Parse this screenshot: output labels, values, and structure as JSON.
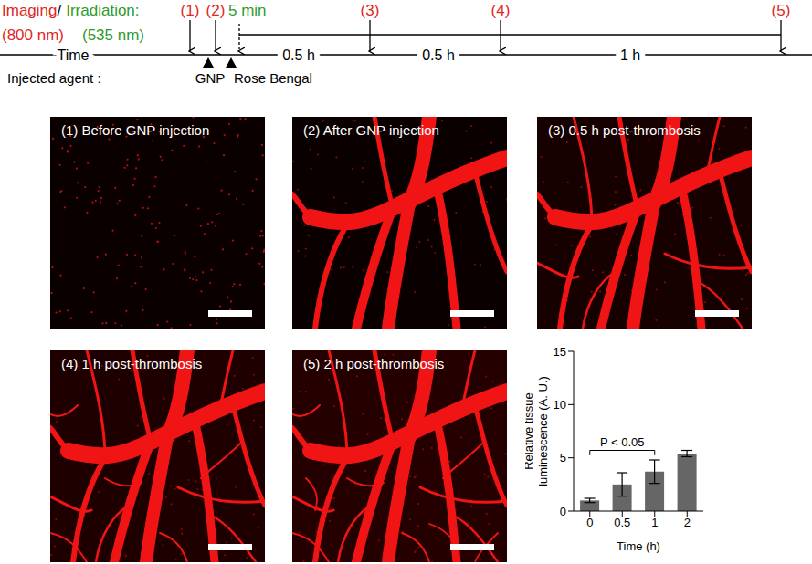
{
  "timeline": {
    "imaging": "Imaging",
    "slash": "/",
    "irradiation": "Irradiation:",
    "imaging_wavelength": "(800 nm)",
    "irradiation_wavelength": "(535 nm)",
    "time": "Time",
    "injected_agent": "Injected agent :",
    "events": [
      {
        "label": "(1)",
        "kind": "imaging"
      },
      {
        "label": "(2)",
        "kind": "imaging"
      },
      {
        "label": "5 min",
        "kind": "irradiation"
      },
      {
        "label": "(3)",
        "kind": "imaging"
      },
      {
        "label": "(4)",
        "kind": "imaging"
      },
      {
        "label": "(5)",
        "kind": "imaging"
      }
    ],
    "intervals": [
      "0.5 h",
      "0.5 h",
      "1 h"
    ],
    "agents": [
      "GNP",
      "Rose Bengal"
    ]
  },
  "panels": [
    "(1) Before GNP injection",
    "(2) After GNP injection",
    "(3) 0.5 h post-thrombosis",
    "(4) 1 h post-thrombosis",
    "(5) 2 h post-thrombosis"
  ],
  "chart_data": {
    "type": "bar",
    "categories": [
      "0",
      "0.5",
      "1",
      "2"
    ],
    "values": [
      1.0,
      2.5,
      3.7,
      5.4
    ],
    "errors": [
      0.2,
      1.1,
      1.1,
      0.3
    ],
    "color": "#666666",
    "xlabel": "Time (h)",
    "ylabel": [
      "Relative tissue",
      "luminescence (A. U.)"
    ],
    "ylim": [
      0,
      15
    ],
    "yticks": [
      0,
      5,
      10,
      15
    ],
    "annotation": {
      "text": "P < 0.05",
      "from": "0",
      "to": "1"
    }
  }
}
